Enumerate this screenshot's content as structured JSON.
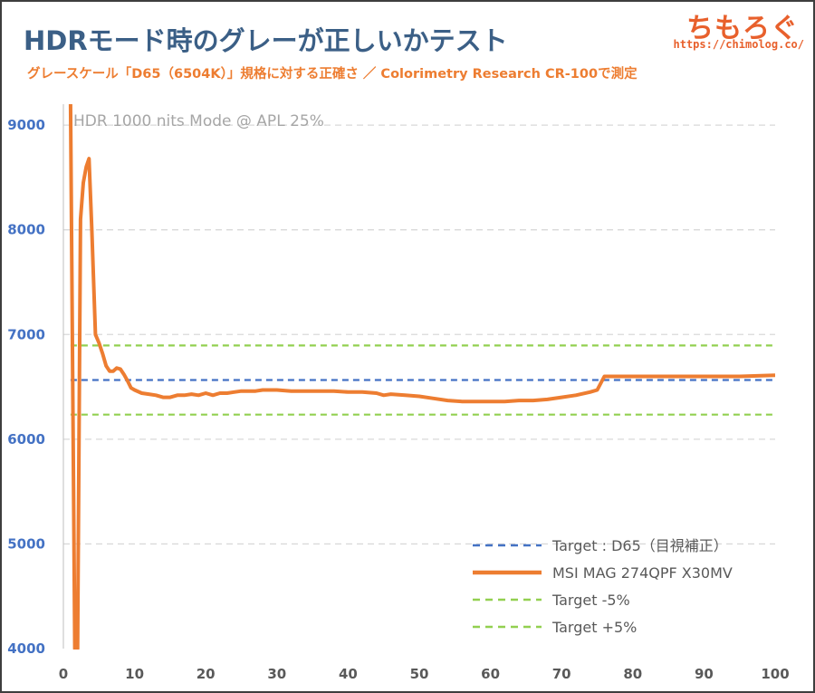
{
  "header": {
    "title": "HDRモード時のグレーが正しいかテスト",
    "subtitle": "グレースケール「D65（6504K）」規格に対する正確さ ／ Colorimetry Research CR-100で測定"
  },
  "logo": {
    "text": "ちもろぐ",
    "url": "https://chimolog.co/"
  },
  "colors": {
    "measured": "#ed7d31",
    "target": "#4472c4",
    "tolerance": "#92d050",
    "grid": "#d9d9d9"
  },
  "chart_data": {
    "type": "line",
    "annotation": "HDR 1000 nits Mode @ APL 25%",
    "xlim": [
      0,
      100
    ],
    "ylim": [
      4000,
      9200
    ],
    "xticks": [
      0,
      10,
      20,
      30,
      40,
      50,
      60,
      70,
      80,
      90,
      100
    ],
    "yticks": [
      4000,
      5000,
      6000,
      7000,
      8000,
      9000
    ],
    "grid": "horizontal dashed",
    "legend_position": "bottom-right",
    "series": [
      {
        "name": "Target : D65（目視補正）",
        "style": "dashed",
        "color": "#4472c4",
        "x": [
          1,
          100
        ],
        "y": [
          6565,
          6565
        ]
      },
      {
        "name": "MSI MAG 274QPF X30MV",
        "style": "solid",
        "color": "#ed7d31",
        "x": [
          1,
          1.6,
          2,
          2.4,
          2.8,
          3.2,
          3.6,
          4,
          4.5,
          5,
          5.5,
          6,
          6.5,
          7,
          7.5,
          8,
          8.5,
          9,
          9.5,
          10,
          11,
          12,
          13,
          14,
          15,
          16,
          17,
          18,
          19,
          20,
          21,
          22,
          23,
          24,
          25,
          26,
          27,
          28,
          29,
          30,
          32,
          34,
          36,
          38,
          40,
          42,
          44,
          45,
          46,
          48,
          50,
          52,
          54,
          56,
          58,
          60,
          62,
          64,
          66,
          68,
          70,
          72,
          74,
          75,
          76,
          77,
          80,
          85,
          90,
          95,
          100
        ],
        "y": [
          9200,
          4000,
          4000,
          8100,
          8450,
          8600,
          8680,
          8000,
          7000,
          6920,
          6820,
          6700,
          6650,
          6650,
          6680,
          6670,
          6620,
          6560,
          6490,
          6470,
          6440,
          6430,
          6420,
          6400,
          6400,
          6420,
          6420,
          6430,
          6420,
          6440,
          6420,
          6440,
          6440,
          6450,
          6460,
          6460,
          6460,
          6470,
          6470,
          6470,
          6460,
          6460,
          6460,
          6460,
          6450,
          6450,
          6440,
          6420,
          6430,
          6420,
          6410,
          6390,
          6370,
          6360,
          6360,
          6360,
          6360,
          6370,
          6370,
          6380,
          6400,
          6420,
          6450,
          6470,
          6600,
          6600,
          6600,
          6600,
          6600,
          6600,
          6610
        ]
      },
      {
        "name": "Target -5%",
        "style": "dashed",
        "color": "#92d050",
        "x": [
          1,
          100
        ],
        "y": [
          6235,
          6235
        ]
      },
      {
        "name": "Target +5%",
        "style": "dashed",
        "color": "#92d050",
        "x": [
          1,
          100
        ],
        "y": [
          6895,
          6895
        ]
      }
    ]
  }
}
